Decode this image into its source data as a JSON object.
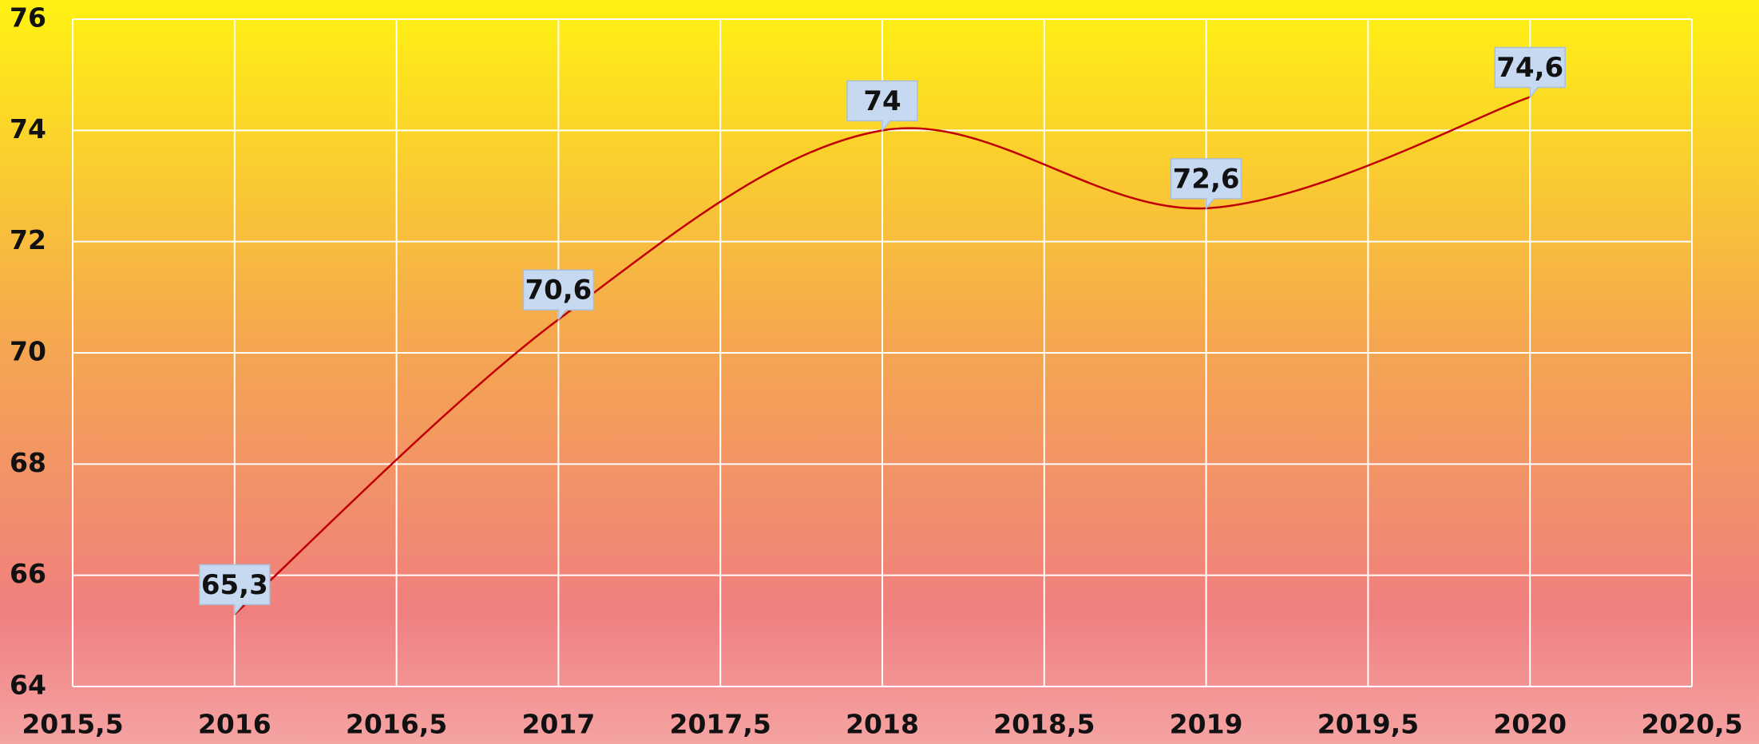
{
  "chart_data": {
    "type": "line",
    "x": [
      2016,
      2017,
      2018,
      2019,
      2020
    ],
    "values": [
      65.3,
      70.6,
      74,
      72.6,
      74.6
    ],
    "value_labels": [
      "65,3",
      "70,6",
      "74",
      "72,6",
      "74,6"
    ],
    "color": "#c00000",
    "smooth": true,
    "grid": true,
    "xlim": [
      2015.5,
      2020.5
    ],
    "xticks": [
      {
        "value": 2015.5,
        "label": "2015,5"
      },
      2016,
      {
        "value": 2016.5,
        "label": "2016,5"
      },
      2017,
      {
        "value": 2017.5,
        "label": "2017,5"
      },
      2018,
      {
        "value": 2018.5,
        "label": "2018,5"
      },
      2019,
      {
        "value": 2019.5,
        "label": "2019,5"
      },
      2020,
      {
        "value": 2020.5,
        "label": "2020,5"
      }
    ],
    "ylim": [
      64,
      76
    ],
    "yticks": [
      64,
      66,
      68,
      70,
      72,
      74,
      76
    ]
  }
}
